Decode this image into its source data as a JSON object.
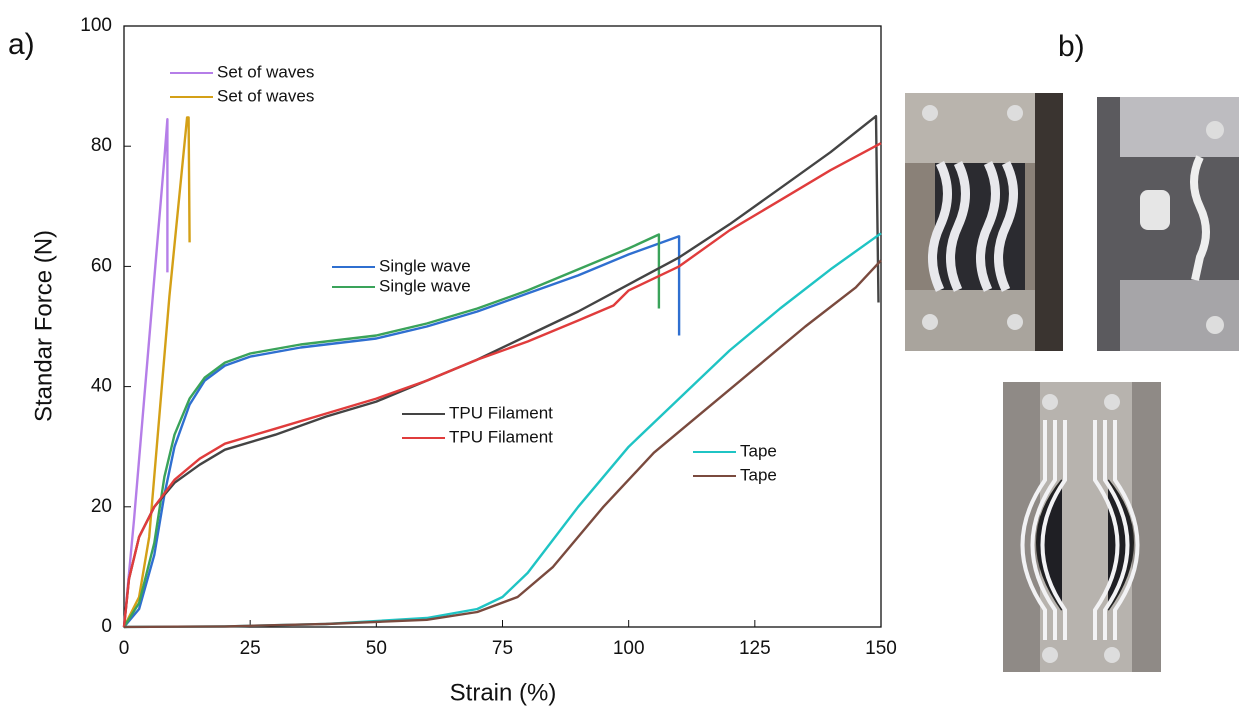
{
  "chart_data": {
    "type": "line",
    "panel_labels": [
      "a)",
      "b)"
    ],
    "xlabel": "Strain (%)",
    "ylabel": "Standar Force (N)",
    "xlim": [
      0,
      150
    ],
    "ylim": [
      0,
      100
    ],
    "xticks": [
      0,
      25,
      50,
      75,
      100,
      125,
      150
    ],
    "yticks": [
      0,
      20,
      40,
      60,
      80,
      100
    ],
    "series": [
      {
        "name": "Set of waves",
        "color": "#b57ee8",
        "x": [
          0,
          2,
          4,
          6,
          8,
          8.6,
          8.6
        ],
        "values": [
          0,
          18,
          38,
          58,
          78,
          84.5,
          59
        ]
      },
      {
        "name": "Set of waves",
        "color": "#d4a017",
        "x": [
          0,
          3,
          5,
          7,
          9,
          11,
          12.5,
          12.8,
          13
        ],
        "values": [
          0,
          5,
          15,
          35,
          55,
          72,
          84.8,
          84.8,
          64
        ]
      },
      {
        "name": "Single wave",
        "color": "#2f6fd0",
        "x": [
          0,
          3,
          6,
          8,
          10,
          13,
          16,
          20,
          25,
          35,
          50,
          60,
          70,
          80,
          90,
          100,
          110,
          110
        ],
        "values": [
          0,
          3,
          12,
          22,
          30,
          37,
          41,
          43.5,
          45,
          46.5,
          48,
          50,
          52.5,
          55.5,
          58.5,
          62,
          65,
          48.5
        ]
      },
      {
        "name": "Single wave",
        "color": "#3aa35a",
        "x": [
          0,
          3,
          6,
          8,
          10,
          13,
          16,
          20,
          25,
          35,
          50,
          60,
          70,
          80,
          90,
          100,
          106,
          106
        ],
        "values": [
          0,
          4,
          14,
          25,
          32,
          38,
          41.5,
          44,
          45.5,
          47,
          48.5,
          50.5,
          53,
          56,
          59.5,
          63,
          65.3,
          53
        ]
      },
      {
        "name": "TPU Filament",
        "color": "#444444",
        "x": [
          0,
          1,
          3,
          6,
          10,
          15,
          20,
          30,
          40,
          50,
          60,
          70,
          80,
          90,
          100,
          110,
          120,
          130,
          140,
          149,
          149.5
        ],
        "values": [
          0,
          8,
          15,
          20,
          24,
          27,
          29.5,
          32,
          35,
          37.5,
          41,
          44.5,
          48.5,
          52.5,
          57,
          61.5,
          67,
          73,
          79,
          85,
          54
        ]
      },
      {
        "name": "TPU Filament",
        "color": "#e03c3c",
        "x": [
          0,
          1,
          3,
          6,
          10,
          15,
          20,
          30,
          40,
          50,
          60,
          70,
          80,
          90,
          97,
          100,
          110,
          120,
          130,
          140,
          150
        ],
        "values": [
          0,
          8,
          15,
          20,
          24.5,
          28,
          30.5,
          33,
          35.5,
          38,
          41,
          44.5,
          47.5,
          51,
          53.5,
          56,
          60,
          66,
          71,
          76,
          80.5
        ]
      },
      {
        "name": "Tape",
        "color": "#1fc4c4",
        "x": [
          0,
          20,
          40,
          60,
          70,
          75,
          80,
          90,
          100,
          110,
          120,
          130,
          140,
          150
        ],
        "values": [
          0,
          0.1,
          0.5,
          1.5,
          3,
          5,
          9,
          20,
          30,
          38,
          46,
          53,
          59.5,
          65.5
        ]
      },
      {
        "name": "Tape",
        "color": "#7a4a3e",
        "x": [
          0,
          20,
          40,
          60,
          70,
          78,
          85,
          95,
          105,
          115,
          125,
          135,
          145,
          150
        ],
        "values": [
          0,
          0.1,
          0.5,
          1.2,
          2.5,
          5,
          10,
          20,
          29,
          36,
          43,
          50,
          56.5,
          61
        ]
      }
    ]
  }
}
